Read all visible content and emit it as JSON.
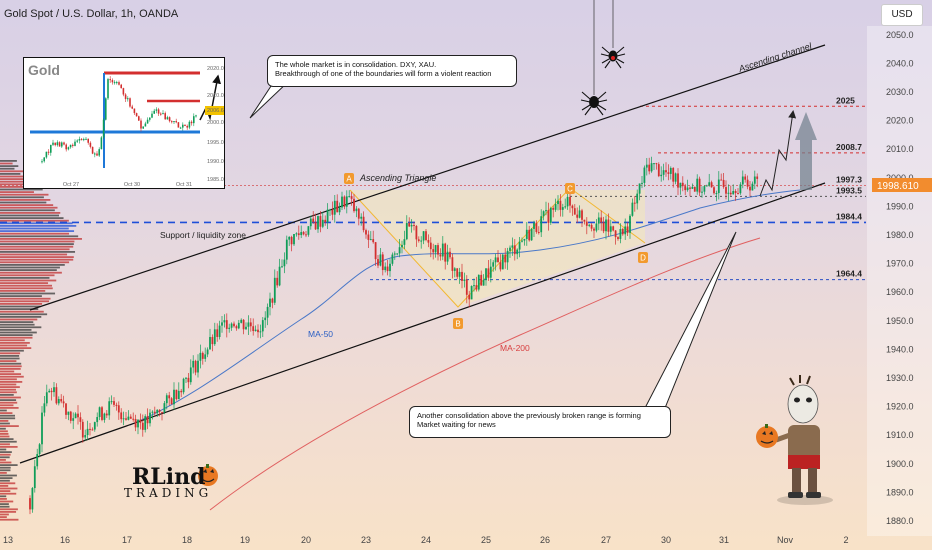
{
  "header": {
    "title": "Gold Spot / U.S. Dollar, 1h, OANDA",
    "currency": "USD"
  },
  "price_badge": "1998.610",
  "inset": {
    "title": "Gold",
    "y_ticks": [
      "2020.0",
      "2010.0",
      "2006.6",
      "2000.0",
      "1995.0",
      "1990.0",
      "1985.0"
    ],
    "x_ticks": [
      "Oct 27",
      "Oct 30",
      "Oct 31"
    ]
  },
  "callouts": {
    "top": [
      "The whole market is in consolidation. DXY, XAU.",
      "Breakthrough of one of the boundaries will form a violent reaction"
    ],
    "bottom": [
      "Another consolidation above the previously broken range is forming",
      "Market waiting for news"
    ]
  },
  "annotations": {
    "channel": "Ascending channel",
    "triangle": "Ascending Triangle",
    "support": "Support / liquidity zone",
    "ma50": "MA-50",
    "ma200": "MA-200",
    "point_a": "A",
    "point_b": "B",
    "point_c": "C",
    "point_d": "D"
  },
  "logo_text": [
    "RLind",
    "TRADING"
  ],
  "colors": {
    "up": "#0f9d58",
    "down": "#d32f2f",
    "support_line": "#1e4fd8",
    "resistance": "#d32f2f",
    "ma50": "#4a78c8",
    "ma200": "#e06060",
    "channel": "#111111",
    "triangle_fill": "#f4e9b8",
    "marker": "#f29a2e"
  },
  "chart_data": {
    "type": "candlestick",
    "symbol": "XAUUSD",
    "timeframe": "1h",
    "y_axis": {
      "ticks": [
        1880,
        1890,
        1900,
        1910,
        1920,
        1930,
        1940,
        1950,
        1960,
        1970,
        1980,
        1990,
        2000,
        2010,
        2020,
        2030,
        2040,
        2050
      ],
      "range": [
        1877,
        2055
      ]
    },
    "x_axis": {
      "ticks": [
        "13",
        "16",
        "17",
        "18",
        "19",
        "20",
        "23",
        "24",
        "25",
        "26",
        "27",
        "30",
        "31",
        "Nov",
        "2"
      ]
    },
    "levels": [
      {
        "value": 2025,
        "label": "2025"
      },
      {
        "value": 2008.7,
        "label": "2008.7"
      },
      {
        "value": 1997.3,
        "label": "1997.3"
      },
      {
        "value": 1993.5,
        "label": "1993.5"
      },
      {
        "value": 1984.4,
        "label": "1984.4"
      },
      {
        "value": 1964.4,
        "label": "1964.4"
      }
    ],
    "last_price": 1998.61,
    "close_path": [
      [
        "13",
        1880
      ],
      [
        "13",
        1888
      ],
      [
        "16",
        1928
      ],
      [
        "16",
        1912
      ],
      [
        "17",
        1920
      ],
      [
        "17",
        1914
      ],
      [
        "18",
        1922
      ],
      [
        "19",
        1950
      ],
      [
        "19",
        1948
      ],
      [
        "20",
        1978
      ],
      [
        "20",
        1986
      ],
      [
        "23",
        1993
      ],
      [
        "23",
        1968
      ],
      [
        "24",
        1982
      ],
      [
        "24",
        1974
      ],
      [
        "25",
        1960
      ],
      [
        "25",
        1972
      ],
      [
        "26",
        1980
      ],
      [
        "26",
        1992
      ],
      [
        "27",
        1985
      ],
      [
        "27",
        1980
      ],
      [
        "30",
        2005
      ],
      [
        "30",
        1998
      ],
      [
        "31",
        1996
      ],
      [
        "31",
        1998.6
      ]
    ]
  }
}
